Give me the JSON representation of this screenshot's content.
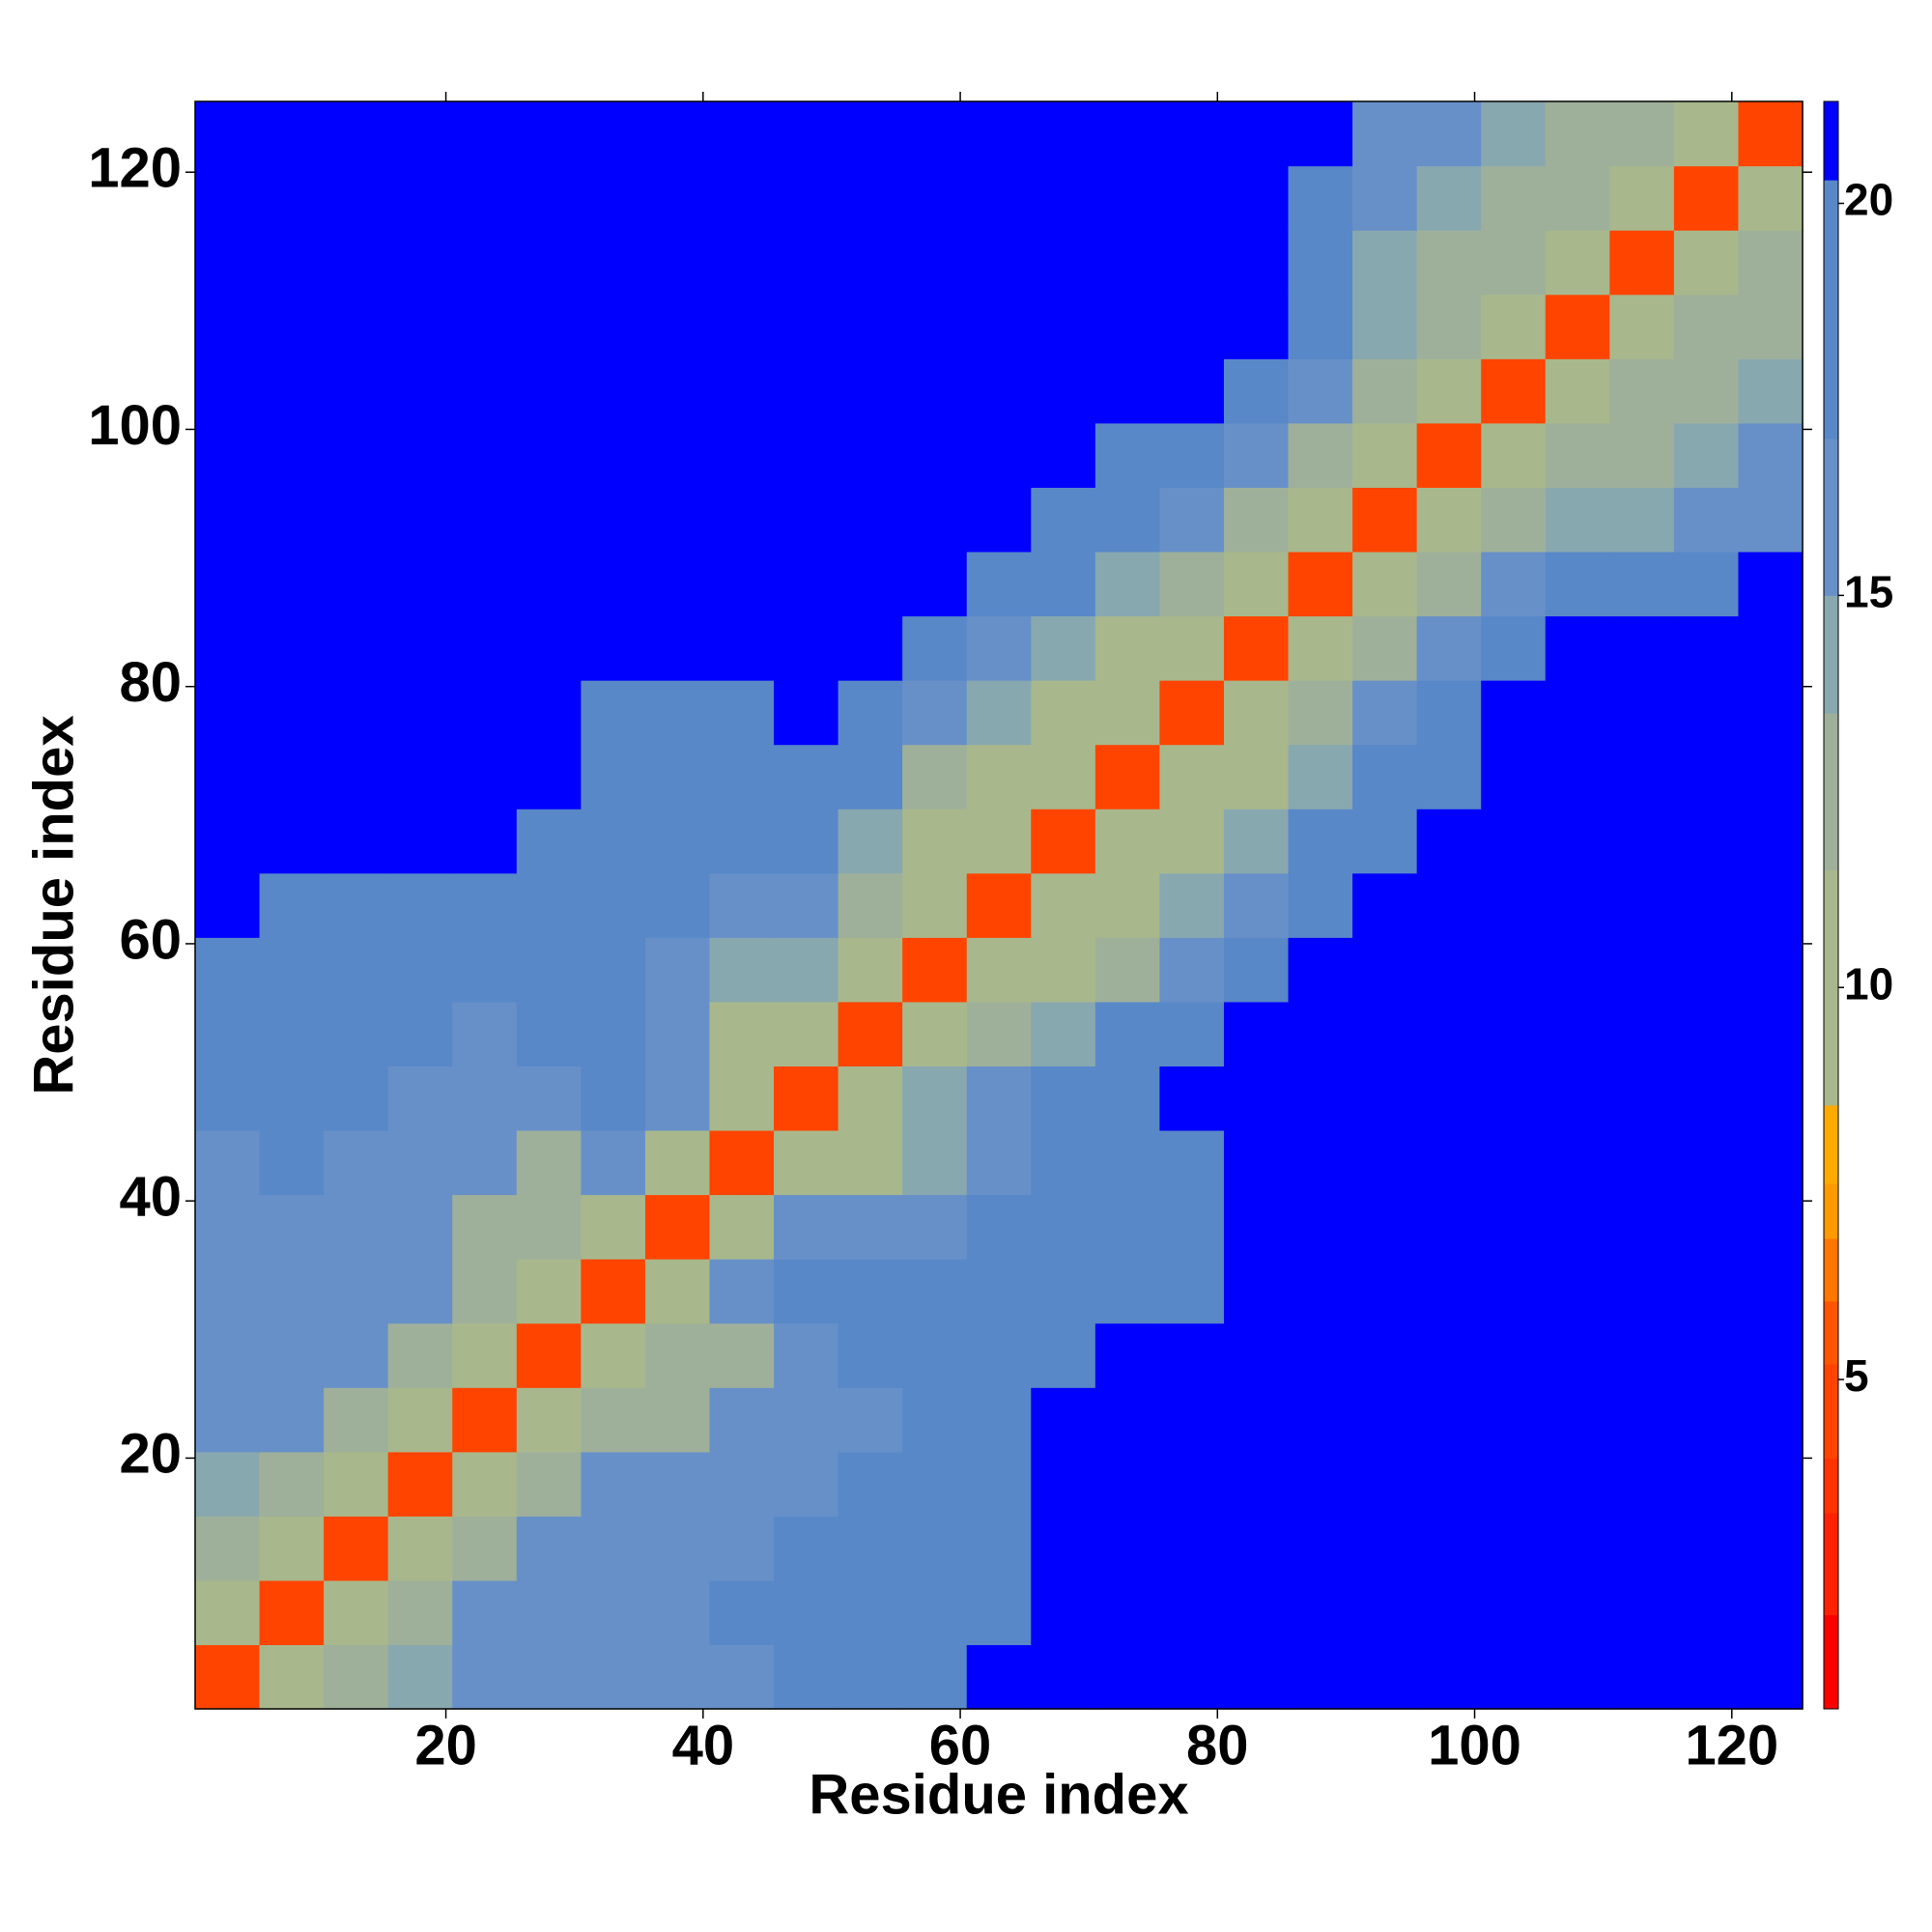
{
  "chart_data": {
    "type": "heatmap",
    "x_label": "Residue index",
    "y_label": "Residue index",
    "x": [
      3,
      8,
      13,
      18,
      23,
      28,
      33,
      38,
      43,
      48,
      53,
      58,
      63,
      68,
      73,
      78,
      83,
      88,
      93,
      98,
      103,
      108,
      113,
      118,
      123
    ],
    "y": [
      3,
      8,
      13,
      18,
      23,
      28,
      33,
      38,
      43,
      48,
      53,
      58,
      63,
      68,
      73,
      78,
      83,
      88,
      93,
      98,
      103,
      108,
      113,
      118,
      123
    ],
    "z": [
      [
        5,
        11,
        13,
        14,
        16,
        16,
        15,
        15,
        16,
        17,
        17,
        19,
        21,
        21,
        21,
        21,
        21,
        21,
        21,
        21,
        21,
        21,
        21,
        21,
        21
      ],
      [
        11,
        5,
        11,
        13,
        15,
        15,
        16,
        16,
        17,
        17,
        17,
        18,
        20,
        21,
        21,
        21,
        21,
        21,
        21,
        21,
        21,
        21,
        21,
        21,
        21
      ],
      [
        13,
        11,
        5,
        11,
        13,
        15,
        15,
        16,
        16,
        17,
        17,
        18,
        19,
        21,
        21,
        21,
        21,
        21,
        21,
        21,
        21,
        21,
        21,
        21,
        21
      ],
      [
        14,
        13,
        11,
        5,
        11,
        13,
        15,
        16,
        16,
        16,
        17,
        18,
        19,
        21,
        21,
        21,
        21,
        21,
        21,
        21,
        21,
        21,
        21,
        21,
        21
      ],
      [
        16,
        15,
        13,
        11,
        5,
        11,
        12,
        13,
        15,
        16,
        16,
        17,
        18,
        21,
        21,
        21,
        21,
        21,
        21,
        21,
        21,
        21,
        21,
        21,
        21
      ],
      [
        16,
        15,
        15,
        13,
        11,
        5,
        11,
        12,
        13,
        16,
        17,
        18,
        19,
        20,
        21,
        21,
        21,
        21,
        21,
        21,
        21,
        21,
        21,
        21,
        21
      ],
      [
        15,
        16,
        15,
        15,
        12,
        11,
        5,
        10,
        15,
        17,
        17,
        17,
        18,
        19,
        17,
        19,
        21,
        21,
        21,
        21,
        21,
        21,
        21,
        21,
        21
      ],
      [
        15,
        16,
        16,
        16,
        13,
        12,
        10,
        5,
        10,
        15,
        15,
        16,
        17,
        17,
        17,
        19,
        21,
        21,
        21,
        21,
        21,
        21,
        21,
        21,
        21
      ],
      [
        16,
        17,
        16,
        16,
        15,
        13,
        15,
        10,
        5,
        10,
        11,
        14,
        15,
        17,
        18,
        20,
        21,
        21,
        21,
        21,
        21,
        21,
        21,
        21,
        21
      ],
      [
        17,
        17,
        17,
        16,
        16,
        16,
        17,
        15,
        10,
        5,
        10,
        14,
        15,
        17,
        19,
        21,
        21,
        21,
        21,
        21,
        21,
        21,
        21,
        21,
        21
      ],
      [
        17,
        17,
        17,
        17,
        16,
        17,
        17,
        15,
        11,
        10,
        5,
        10,
        12,
        14,
        17,
        19,
        21,
        21,
        21,
        21,
        21,
        21,
        21,
        21,
        21
      ],
      [
        19,
        18,
        18,
        18,
        17,
        18,
        17,
        16,
        14,
        14,
        10,
        5,
        10,
        11,
        13,
        16,
        18,
        21,
        21,
        21,
        21,
        21,
        21,
        21,
        21
      ],
      [
        21,
        20,
        19,
        19,
        18,
        19,
        18,
        17,
        15,
        15,
        12,
        10,
        5,
        10,
        11,
        14,
        16,
        19,
        21,
        21,
        21,
        21,
        21,
        21,
        21
      ],
      [
        21,
        21,
        21,
        21,
        21,
        20,
        19,
        17,
        17,
        17,
        14,
        11,
        10,
        5,
        10,
        11,
        14,
        17,
        20,
        21,
        21,
        21,
        21,
        21,
        21
      ],
      [
        21,
        21,
        21,
        21,
        21,
        21,
        17,
        17,
        18,
        19,
        17,
        13,
        11,
        10,
        5,
        10,
        11,
        14,
        17,
        20,
        21,
        21,
        21,
        21,
        21
      ],
      [
        21,
        21,
        21,
        21,
        21,
        21,
        19,
        19,
        20,
        21,
        19,
        16,
        14,
        11,
        10,
        5,
        10,
        12,
        15,
        18,
        21,
        21,
        21,
        21,
        21
      ],
      [
        21,
        21,
        21,
        21,
        21,
        21,
        21,
        21,
        21,
        21,
        21,
        18,
        16,
        14,
        11,
        10,
        5,
        10,
        13,
        16,
        19,
        21,
        21,
        21,
        21
      ],
      [
        21,
        21,
        21,
        21,
        21,
        21,
        21,
        21,
        21,
        21,
        21,
        21,
        19,
        17,
        14,
        12,
        10,
        5,
        10,
        13,
        16,
        18,
        19,
        20,
        21
      ],
      [
        21,
        21,
        21,
        21,
        21,
        21,
        21,
        21,
        21,
        21,
        21,
        21,
        21,
        20,
        17,
        15,
        13,
        10,
        5,
        10,
        12,
        14,
        14,
        15,
        16
      ],
      [
        21,
        21,
        21,
        21,
        21,
        21,
        21,
        21,
        21,
        21,
        21,
        21,
        21,
        21,
        20,
        18,
        16,
        13,
        10,
        5,
        10,
        12,
        13,
        14,
        15
      ],
      [
        21,
        21,
        21,
        21,
        21,
        21,
        21,
        21,
        21,
        21,
        21,
        21,
        21,
        21,
        21,
        21,
        19,
        16,
        12,
        10,
        5,
        10,
        12,
        13,
        14
      ],
      [
        21,
        21,
        21,
        21,
        21,
        21,
        21,
        21,
        21,
        21,
        21,
        21,
        21,
        21,
        21,
        21,
        21,
        18,
        14,
        12,
        10,
        5,
        10,
        12,
        13
      ],
      [
        21,
        21,
        21,
        21,
        21,
        21,
        21,
        21,
        21,
        21,
        21,
        21,
        21,
        21,
        21,
        21,
        21,
        19,
        14,
        13,
        12,
        10,
        5,
        10,
        12
      ],
      [
        21,
        21,
        21,
        21,
        21,
        21,
        21,
        21,
        21,
        21,
        21,
        21,
        21,
        21,
        21,
        21,
        21,
        20,
        15,
        14,
        13,
        12,
        10,
        5,
        10
      ],
      [
        21,
        21,
        21,
        21,
        21,
        21,
        21,
        21,
        21,
        21,
        21,
        21,
        21,
        21,
        21,
        21,
        21,
        21,
        16,
        15,
        14,
        13,
        12,
        10,
        5
      ]
    ],
    "xlim": [
      0.5,
      125.5
    ],
    "ylim": [
      0.5,
      125.5
    ],
    "xticks": [
      20,
      40,
      60,
      80,
      100,
      120
    ],
    "yticks": [
      20,
      40,
      60,
      80,
      100,
      120
    ],
    "colorbar": {
      "lim": [
        0.8,
        21.3
      ],
      "ticks": [
        5,
        10,
        15,
        20
      ],
      "levels": [
        {
          "value": 0.8,
          "color": "#ff0000"
        },
        {
          "value": 2.0,
          "color": "#ff2200"
        },
        {
          "value": 3.3,
          "color": "#ff3300"
        },
        {
          "value": 4.0,
          "color": "#ff4400"
        },
        {
          "value": 5.2,
          "color": "#ff5500"
        },
        {
          "value": 6.0,
          "color": "#ff7700"
        },
        {
          "value": 6.8,
          "color": "#ff9900"
        },
        {
          "value": 7.5,
          "color": "#ffaa00"
        },
        {
          "value": 8.5,
          "color": "#a8b88c"
        },
        {
          "value": 11.5,
          "color": "#9fb09a"
        },
        {
          "value": 13.5,
          "color": "#88a8b0"
        },
        {
          "value": 15.0,
          "color": "#6890c8"
        },
        {
          "value": 17.0,
          "color": "#5888c8"
        },
        {
          "value": 20.3,
          "color": "#0000ff"
        }
      ]
    }
  }
}
